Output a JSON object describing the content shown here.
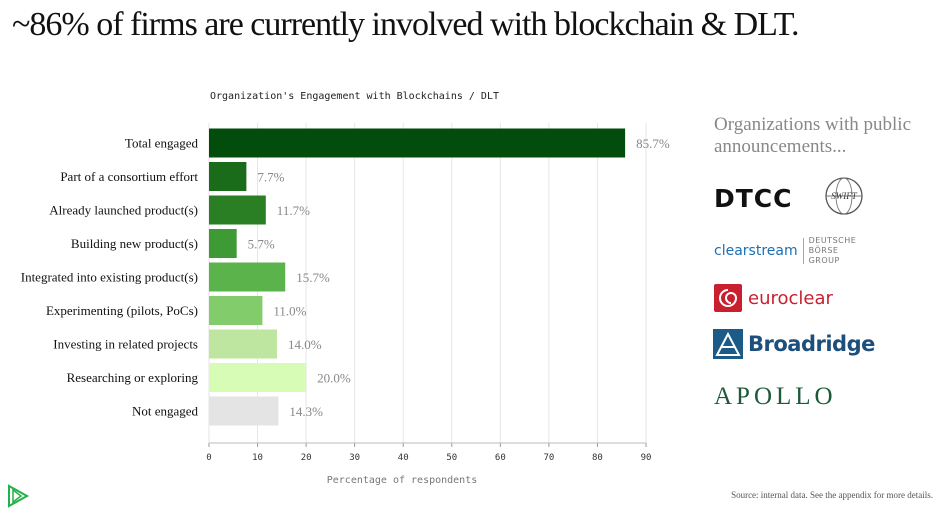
{
  "headline": "~86% of firms are currently involved with blockchain & DLT.",
  "chart_data": {
    "type": "bar",
    "orientation": "horizontal",
    "title": "Organization's Engagement with Blockchains / DLT",
    "xlabel": "Percentage of respondents",
    "ylabel": "",
    "xlim": [
      0,
      90
    ],
    "x_ticks": [
      0,
      10,
      20,
      30,
      40,
      50,
      60,
      70,
      80,
      90
    ],
    "grid": true,
    "categories": [
      "Total engaged",
      "Part of a consortium effort",
      "Already launched product(s)",
      "Building new product(s)",
      "Integrated into existing product(s)",
      "Experimenting (pilots, PoCs)",
      "Investing in related projects",
      "Researching or exploring",
      "Not engaged"
    ],
    "values": [
      85.7,
      7.7,
      11.7,
      5.7,
      15.7,
      11.0,
      14.0,
      20.0,
      14.3
    ],
    "value_labels": [
      "85.7%",
      "7.7%",
      "11.7%",
      "5.7%",
      "15.7%",
      "11.0%",
      "14.0%",
      "20.0%",
      "14.3%"
    ],
    "colors": [
      "#024d0b",
      "#1a6b1a",
      "#2a7f25",
      "#3d9a35",
      "#5bb44b",
      "#82cc6c",
      "#bfe6a0",
      "#d6fcb6",
      "#e4e4e4"
    ]
  },
  "sidebar": {
    "heading": "Organizations with public announcements...",
    "logos": [
      {
        "name": "DTCC",
        "text": "DTCC"
      },
      {
        "name": "SWIFT",
        "text": "SWIFT"
      },
      {
        "name": "Clearstream",
        "text": "clearstream",
        "subtext": "DEUTSCHE BÖRSE GROUP"
      },
      {
        "name": "Euroclear",
        "text": "euroclear"
      },
      {
        "name": "Broadridge",
        "text": "Broadridge"
      },
      {
        "name": "Apollo",
        "text": "APOLLO"
      }
    ]
  },
  "footer": {
    "source": "Source: internal data.  See the appendix for more details."
  }
}
